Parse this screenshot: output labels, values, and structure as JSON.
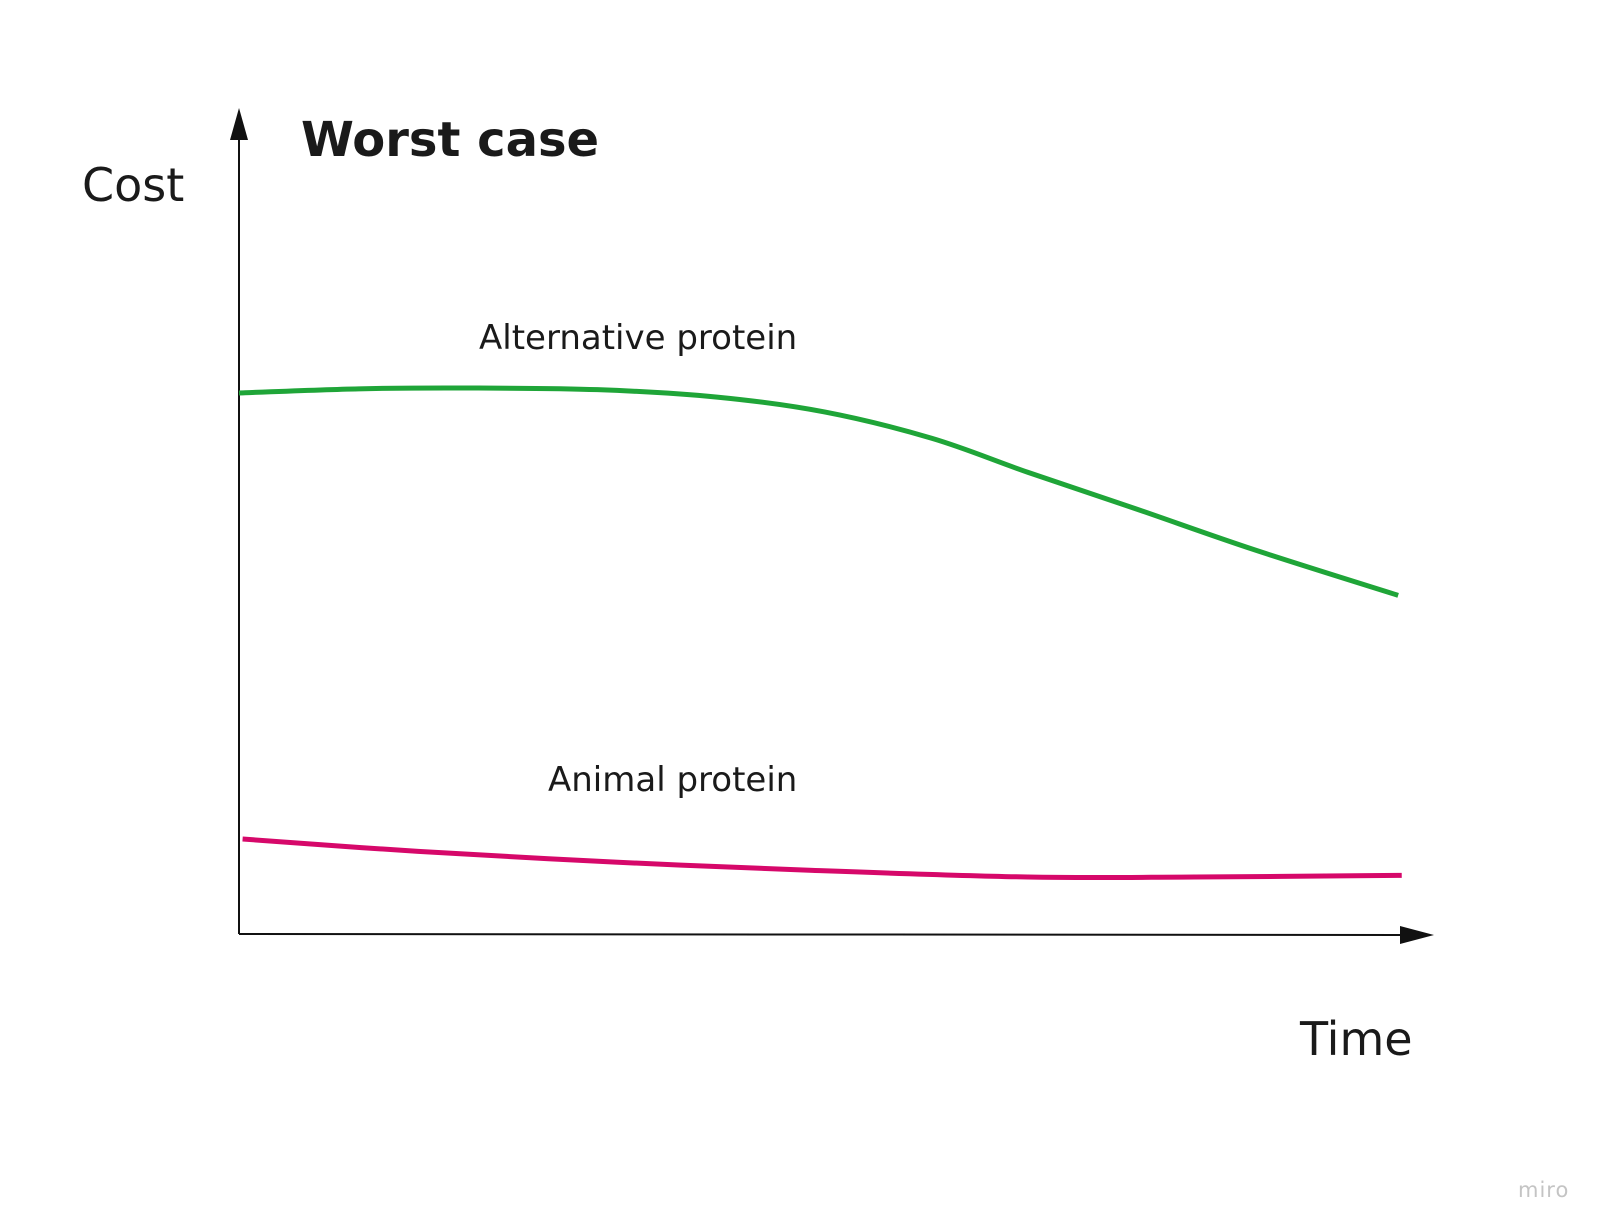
{
  "chart_data": {
    "type": "line",
    "title": "Worst case",
    "xlabel": "Time",
    "ylabel": "Cost",
    "xlim": [
      0,
      100
    ],
    "ylim": [
      0,
      100
    ],
    "grid": false,
    "ticks": "none",
    "series": [
      {
        "name": "Alternative protein",
        "color": "#1fa538",
        "x": [
          0,
          10,
          19,
          30,
          40,
          49,
          58,
          66,
          75,
          85,
          97
        ],
        "y": [
          65.5,
          66.0,
          66.1,
          65.9,
          65.0,
          63.2,
          60.0,
          55.9,
          51.5,
          46.5,
          41.0
        ]
      },
      {
        "name": "Animal protein",
        "color": "#d6086a",
        "x": [
          0.3,
          15,
          31.5,
          48,
          66,
          80,
          97.3
        ],
        "y": [
          11.5,
          10.0,
          8.7,
          7.7,
          6.9,
          6.9,
          7.1
        ]
      }
    ]
  },
  "watermark": "miro"
}
